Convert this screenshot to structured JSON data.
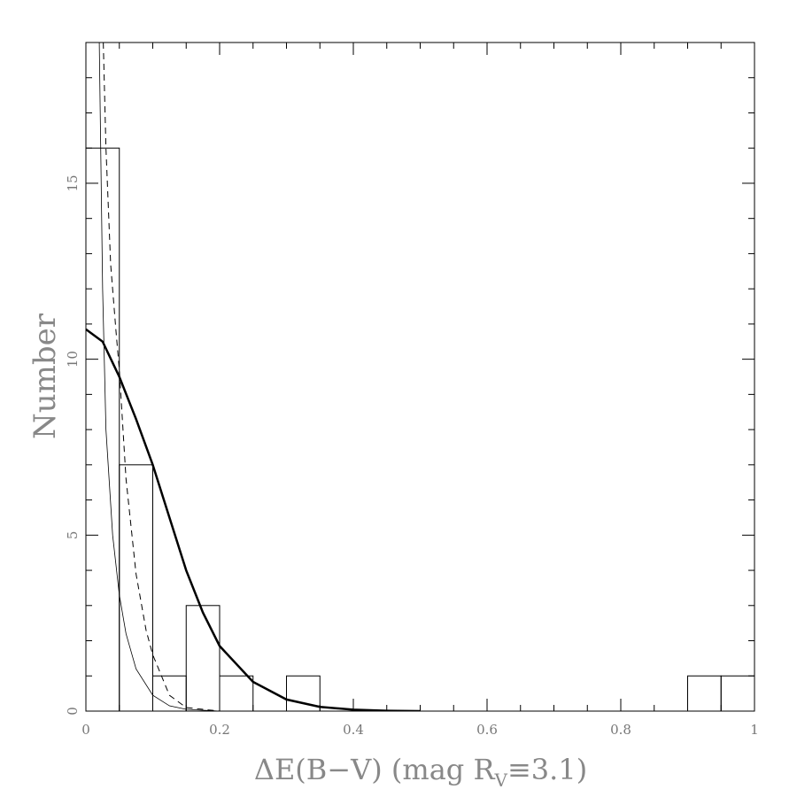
{
  "chart_data": {
    "type": "histogram",
    "xlabel": {
      "text": "ΔE(B−V) (mag R",
      "subscript": "V",
      "after": "≡3.1)"
    },
    "ylabel": "Number",
    "bins": [
      0,
      0.05,
      0.1,
      0.15,
      0.2,
      0.25,
      0.3,
      0.35,
      0.4,
      0.45,
      0.5,
      0.55,
      0.6,
      0.65,
      0.7,
      0.75,
      0.8,
      0.85,
      0.9,
      0.95,
      1
    ],
    "values": [
      16,
      7,
      1,
      3,
      1,
      0,
      1,
      0,
      0,
      0,
      0,
      0,
      0,
      0,
      0,
      0,
      0,
      0,
      1,
      1
    ],
    "color": "#000000",
    "curves": [
      {
        "line_style": "thick",
        "color": "#000000",
        "x": [
          0,
          0.025,
          0.05,
          0.075,
          0.1,
          0.125,
          0.15,
          0.175,
          0.2,
          0.25,
          0.3,
          0.35,
          0.4,
          0.45,
          0.5
        ],
        "values": [
          10.85,
          10.5,
          9.5,
          8.3,
          7.0,
          5.5,
          4.0,
          2.8,
          1.85,
          0.83,
          0.33,
          0.12,
          0.04,
          0.01,
          0.0
        ]
      },
      {
        "line_style": "dashed",
        "color": "#000000",
        "x": [
          0.026,
          0.03,
          0.037,
          0.045,
          0.05,
          0.06,
          0.075,
          0.09,
          0.1,
          0.125,
          0.15,
          0.2
        ],
        "values": [
          19,
          16,
          12.7,
          10.8,
          9.7,
          6.6,
          3.9,
          2.3,
          1.6,
          0.45,
          0.1,
          0
        ]
      },
      {
        "line_style": "thin",
        "color": "#000000",
        "x": [
          0.02,
          0.025,
          0.03,
          0.04,
          0.05,
          0.06,
          0.075,
          0.1,
          0.125,
          0.15,
          0.2
        ],
        "values": [
          19,
          12,
          8,
          5,
          3.3,
          2.2,
          1.2,
          0.45,
          0.15,
          0.05,
          0
        ]
      }
    ],
    "xlim": [
      0,
      1
    ],
    "ylim": [
      0,
      19
    ],
    "xticks": [
      0,
      0.2,
      0.4,
      0.6,
      0.8,
      1
    ],
    "yticks": [
      0,
      5,
      10,
      15
    ],
    "xminorticks": [
      0.05,
      0.1,
      0.15,
      0.25,
      0.3,
      0.35,
      0.45,
      0.5,
      0.55,
      0.65,
      0.7,
      0.75,
      0.85,
      0.9,
      0.95
    ],
    "yminorticks": [
      1,
      2,
      3,
      4,
      6,
      7,
      8,
      9,
      11,
      12,
      13,
      14,
      16,
      17,
      18,
      19
    ]
  }
}
